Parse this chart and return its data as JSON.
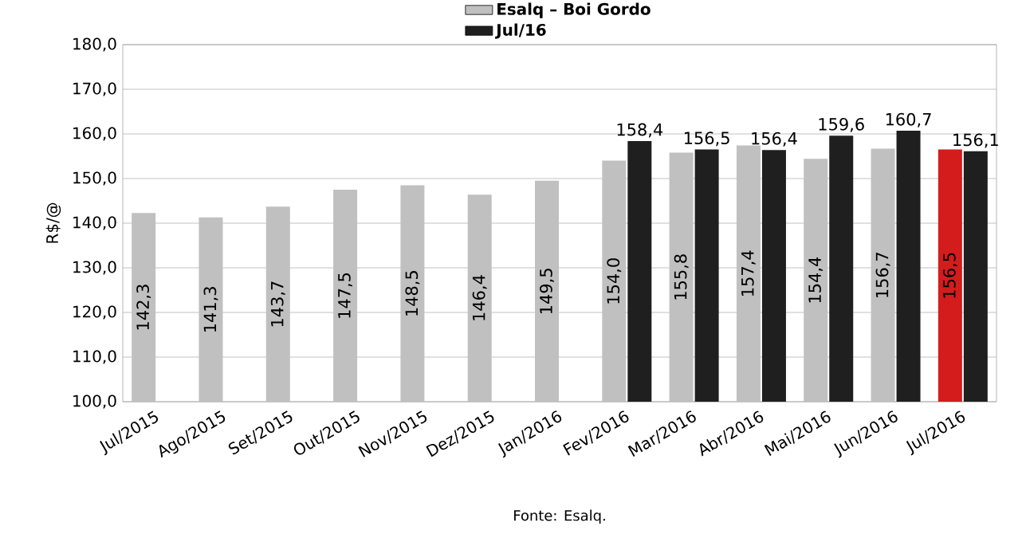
{
  "chart_data": {
    "type": "bar",
    "ylabel": "R$/@",
    "categories": [
      "Jul/2015",
      "Ago/2015",
      "Set/2015",
      "Out/2015",
      "Nov/2015",
      "Dez/2015",
      "Jan/2016",
      "Fev/2016",
      "Mar/2016",
      "Abr/2016",
      "Mai/2016",
      "Jun/2016",
      "Jul/2016"
    ],
    "series": [
      {
        "name": "Esalq – Boi Gordo",
        "color": "#c0c0c0",
        "colors": [
          "#c0c0c0",
          "#c0c0c0",
          "#c0c0c0",
          "#c0c0c0",
          "#c0c0c0",
          "#c0c0c0",
          "#c0c0c0",
          "#c0c0c0",
          "#c0c0c0",
          "#c0c0c0",
          "#c0c0c0",
          "#c0c0c0",
          "#d41c1c"
        ],
        "values": [
          142.3,
          141.3,
          143.7,
          147.5,
          148.5,
          146.4,
          149.5,
          154.0,
          155.8,
          157.4,
          154.4,
          156.7,
          156.5
        ],
        "value_labels": [
          "142,3",
          "141,3",
          "143,7",
          "147,5",
          "148,5",
          "146,4",
          "149,5",
          "154,0",
          "155,8",
          "157,4",
          "154,4",
          "156,7",
          "156,5"
        ]
      },
      {
        "name": "Jul/16",
        "color": "#1f1f1f",
        "values": [
          null,
          null,
          null,
          null,
          null,
          null,
          null,
          158.4,
          156.5,
          156.4,
          159.6,
          160.7,
          156.1
        ],
        "value_labels": [
          null,
          null,
          null,
          null,
          null,
          null,
          null,
          "158,4",
          "156,5",
          "156,4",
          "159,6",
          "160,7",
          "156,1"
        ]
      }
    ],
    "ylim": [
      100,
      180
    ],
    "yticks": [
      {
        "value": 100,
        "label": "100,0"
      },
      {
        "value": 110,
        "label": "110,0"
      },
      {
        "value": 120,
        "label": "120,0"
      },
      {
        "value": 130,
        "label": "130,0"
      },
      {
        "value": 140,
        "label": "140,0"
      },
      {
        "value": 150,
        "label": "150,0"
      },
      {
        "value": 160,
        "label": "160,0"
      },
      {
        "value": 170,
        "label": "170,0"
      },
      {
        "value": 180,
        "label": "180,0"
      }
    ],
    "grid": "y",
    "legend": "top",
    "annotations": [
      "Fonte: Esalq."
    ]
  }
}
